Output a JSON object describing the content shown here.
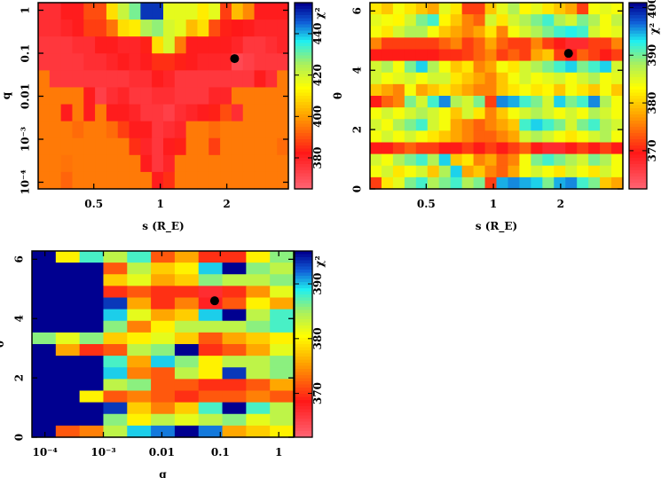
{
  "chart_data": [
    {
      "type": "heatmap",
      "xlabel": "s (R_E)",
      "ylabel": "q",
      "xscale": "log",
      "yscale": "log",
      "xlim": [
        0.28,
        3.8
      ],
      "ylim": [
        7e-05,
        1.5
      ],
      "xticks": [
        {
          "v": 0.5,
          "label": "0.5"
        },
        {
          "v": 1,
          "label": "1"
        },
        {
          "v": 2,
          "label": "2"
        }
      ],
      "yticks": [
        {
          "v": 1,
          "label": "1"
        },
        {
          "v": 0.1,
          "label": "0.1"
        },
        {
          "v": 0.01,
          "label": "0.01"
        },
        {
          "v": 0.001,
          "label": "10⁻³"
        },
        {
          "v": 0.0001,
          "label": "10⁻⁴"
        }
      ],
      "colorbar": {
        "label": "χ²",
        "clim": [
          365,
          455
        ],
        "ticks": [
          380,
          400,
          420,
          440
        ]
      },
      "grid_rows_order": "top-to-bottom",
      "values": [
        [
          378,
          378,
          382,
          382,
          390,
          390,
          410,
          422,
          430,
          450,
          450,
          418,
          418,
          418,
          412,
          418,
          388,
          405,
          398,
          382,
          382,
          382
        ],
        [
          378,
          378,
          380,
          382,
          388,
          388,
          395,
          410,
          412,
          425,
          428,
          420,
          418,
          405,
          410,
          390,
          384,
          383,
          382,
          380,
          380,
          380
        ],
        [
          376,
          376,
          376,
          378,
          378,
          382,
          382,
          380,
          380,
          384,
          410,
          420,
          396,
          382,
          382,
          382,
          382,
          380,
          376,
          376,
          378,
          380
        ],
        [
          376,
          376,
          376,
          376,
          378,
          378,
          380,
          382,
          380,
          382,
          386,
          386,
          384,
          382,
          380,
          380,
          380,
          372,
          374,
          376,
          376,
          376
        ],
        [
          396,
          376,
          376,
          376,
          376,
          376,
          376,
          376,
          378,
          378,
          382,
          380,
          376,
          376,
          376,
          376,
          376,
          376,
          376,
          382,
          378,
          396
        ],
        [
          396,
          396,
          396,
          396,
          382,
          374,
          378,
          380,
          376,
          376,
          378,
          378,
          376,
          376,
          376,
          380,
          380,
          396,
          396,
          396,
          396,
          396
        ],
        [
          396,
          396,
          382,
          396,
          382,
          396,
          382,
          382,
          380,
          376,
          376,
          374,
          378,
          380,
          382,
          384,
          390,
          378,
          396,
          396,
          396,
          396
        ],
        [
          396,
          396,
          396,
          394,
          396,
          396,
          394,
          388,
          382,
          382,
          376,
          378,
          380,
          396,
          396,
          394,
          396,
          396,
          396,
          396,
          396,
          396
        ],
        [
          396,
          396,
          396,
          396,
          396,
          396,
          396,
          396,
          386,
          380,
          376,
          382,
          384,
          396,
          396,
          388,
          396,
          396,
          396,
          396,
          396,
          394
        ],
        [
          396,
          396,
          395,
          396,
          396,
          396,
          396,
          396,
          396,
          382,
          376,
          380,
          396,
          396,
          396,
          396,
          396,
          396,
          396,
          396,
          396,
          396
        ],
        [
          396,
          396,
          393,
          396,
          396,
          396,
          396,
          396,
          396,
          396,
          382,
          386,
          396,
          396,
          396,
          396,
          396,
          396,
          396,
          396,
          396,
          396
        ]
      ],
      "best_fit_point": {
        "x": 2.17,
        "y": 0.075
      }
    },
    {
      "type": "heatmap",
      "xlabel": "s (R_E)",
      "ylabel": "θ",
      "xscale": "log",
      "yscale": "linear",
      "xlim": [
        0.28,
        3.8
      ],
      "ylim": [
        0,
        6.28
      ],
      "xticks": [
        {
          "v": 0.5,
          "label": "0.5"
        },
        {
          "v": 1,
          "label": "1"
        },
        {
          "v": 2,
          "label": "2"
        }
      ],
      "yticks": [
        {
          "v": 0,
          "label": "0"
        },
        {
          "v": 2,
          "label": "2"
        },
        {
          "v": 4,
          "label": "4"
        },
        {
          "v": 6,
          "label": "6"
        }
      ],
      "colorbar": {
        "label": "χ²",
        "clim": [
          362,
          401
        ],
        "ticks": [
          370,
          380,
          390,
          400
        ]
      },
      "grid_rows_order": "top-to-bottom",
      "values": [
        [
          382,
          380,
          384,
          382,
          380,
          378,
          385,
          382,
          372,
          372,
          380,
          385,
          388,
          383,
          385,
          382,
          380,
          378,
          372,
          384,
          385,
          384
        ],
        [
          385,
          384,
          383,
          386,
          390,
          392,
          383,
          380,
          376,
          374,
          386,
          382,
          386,
          388,
          390,
          392,
          388,
          386,
          390,
          388,
          384,
          387
        ],
        [
          384,
          382,
          386,
          388,
          388,
          384,
          380,
          378,
          376,
          378,
          382,
          376,
          384,
          386,
          388,
          390,
          392,
          393,
          392,
          386,
          384,
          385
        ],
        [
          376,
          372,
          372,
          372,
          372,
          372,
          374,
          376,
          372,
          374,
          378,
          374,
          372,
          372,
          376,
          372,
          370,
          368,
          368,
          372,
          372,
          376
        ],
        [
          370,
          370,
          370,
          370,
          370,
          370,
          371,
          371,
          372,
          374,
          376,
          372,
          374,
          372,
          378,
          380,
          372,
          370,
          374,
          372,
          370,
          372
        ],
        [
          386,
          388,
          384,
          390,
          394,
          388,
          384,
          380,
          382,
          376,
          378,
          384,
          382,
          386,
          388,
          390,
          392,
          394,
          390,
          392,
          394,
          386
        ],
        [
          386,
          384,
          385,
          386,
          384,
          386,
          386,
          382,
          380,
          378,
          376,
          380,
          384,
          386,
          384,
          385,
          386,
          384,
          386,
          388,
          384,
          385
        ],
        [
          380,
          378,
          376,
          384,
          378,
          380,
          382,
          380,
          378,
          376,
          376,
          380,
          382,
          384,
          382,
          383,
          380,
          384,
          382,
          380,
          384,
          380
        ],
        [
          370,
          374,
          376,
          390,
          386,
          392,
          396,
          388,
          386,
          390,
          372,
          396,
          395,
          392,
          390,
          386,
          394,
          390,
          392,
          396,
          388,
          384
        ],
        [
          384,
          386,
          384,
          386,
          388,
          386,
          384,
          380,
          386,
          382,
          376,
          380,
          384,
          386,
          388,
          386,
          384,
          386,
          384,
          388,
          386,
          384
        ],
        [
          386,
          384,
          388,
          390,
          392,
          386,
          384,
          378,
          376,
          374,
          376,
          378,
          380,
          392,
          394,
          392,
          390,
          386,
          390,
          392,
          388,
          386
        ],
        [
          384,
          386,
          384,
          386,
          384,
          382,
          380,
          378,
          376,
          374,
          374,
          376,
          378,
          386,
          388,
          386,
          384,
          382,
          384,
          386,
          388,
          384
        ],
        [
          370,
          370,
          372,
          374,
          372,
          372,
          370,
          370,
          372,
          370,
          372,
          370,
          372,
          374,
          370,
          368,
          368,
          370,
          372,
          370,
          372,
          370
        ],
        [
          386,
          384,
          388,
          390,
          392,
          388,
          394,
          380,
          382,
          376,
          378,
          374,
          376,
          384,
          390,
          392,
          390,
          388,
          386,
          390,
          388,
          384
        ],
        [
          384,
          386,
          382,
          384,
          386,
          380,
          388,
          394,
          378,
          380,
          376,
          374,
          378,
          384,
          386,
          384,
          382,
          386,
          384,
          382,
          386,
          384
        ],
        [
          372,
          382,
          385,
          390,
          392,
          388,
          390,
          392,
          388,
          390,
          372,
          395,
          396,
          395,
          394,
          390,
          395,
          396,
          392,
          390,
          380,
          378
        ]
      ],
      "best_fit_point": {
        "x": 2.17,
        "y": 4.57
      }
    },
    {
      "type": "heatmap",
      "xlabel": "q",
      "ylabel": "θ",
      "xscale": "log",
      "yscale": "linear",
      "xlim": [
        6e-05,
        1.8
      ],
      "ylim": [
        0,
        6.28
      ],
      "xticks": [
        {
          "v": 0.0001,
          "label": "10⁻⁴"
        },
        {
          "v": 0.001,
          "label": "10⁻³"
        },
        {
          "v": 0.01,
          "label": "0.01"
        },
        {
          "v": 0.1,
          "label": "0.1"
        },
        {
          "v": 1,
          "label": "1"
        }
      ],
      "yticks": [
        {
          "v": 0,
          "label": "0"
        },
        {
          "v": 2,
          "label": "2"
        },
        {
          "v": 4,
          "label": "4"
        },
        {
          "v": 6,
          "label": "6"
        }
      ],
      "colorbar": {
        "label": "χ²",
        "clim": [
          362,
          396
        ],
        "ticks": [
          370,
          380,
          390
        ]
      },
      "grid_rows_order": "top-to-bottom",
      "values": [
        [
          396,
          380,
          388,
          384,
          388,
          372,
          376,
          370,
          370,
          380,
          386
        ],
        [
          396,
          396,
          396,
          372,
          384,
          378,
          380,
          390,
          396,
          386,
          384
        ],
        [
          396,
          396,
          396,
          378,
          382,
          376,
          378,
          386,
          384,
          384,
          386
        ],
        [
          396,
          396,
          396,
          370,
          372,
          370,
          370,
          367,
          370,
          375,
          382
        ],
        [
          396,
          396,
          396,
          394,
          376,
          370,
          374,
          368,
          372,
          380,
          376
        ],
        [
          396,
          396,
          396,
          390,
          382,
          376,
          378,
          390,
          396,
          384,
          388
        ],
        [
          396,
          396,
          396,
          386,
          374,
          380,
          384,
          384,
          384,
          386,
          388
        ],
        [
          386,
          382,
          386,
          378,
          380,
          382,
          378,
          372,
          376,
          378,
          380
        ],
        [
          396,
          376,
          370,
          372,
          384,
          386,
          396,
          370,
          372,
          376,
          382
        ],
        [
          396,
          396,
          396,
          388,
          376,
          390,
          386,
          380,
          384,
          384,
          386
        ],
        [
          396,
          396,
          396,
          390,
          374,
          372,
          384,
          380,
          394,
          384,
          386
        ],
        [
          396,
          396,
          396,
          384,
          386,
          372,
          372,
          370,
          370,
          372,
          376
        ],
        [
          396,
          396,
          380,
          372,
          374,
          372,
          370,
          372,
          372,
          374,
          372
        ],
        [
          396,
          396,
          396,
          394,
          378,
          374,
          378,
          388,
          396,
          388,
          384
        ],
        [
          396,
          396,
          396,
          386,
          380,
          384,
          382,
          384,
          386,
          382,
          384
        ],
        [
          396,
          372,
          374,
          384,
          390,
          392,
          396,
          392,
          376,
          378,
          380
        ]
      ],
      "best_fit_point": {
        "x": 0.08,
        "y": 4.6
      }
    }
  ],
  "colormap": [
    "#ff6878",
    "#ff1818",
    "#ffa000",
    "#ffff00",
    "#a8f060",
    "#20f0f0",
    "#1060d8",
    "#000090"
  ]
}
